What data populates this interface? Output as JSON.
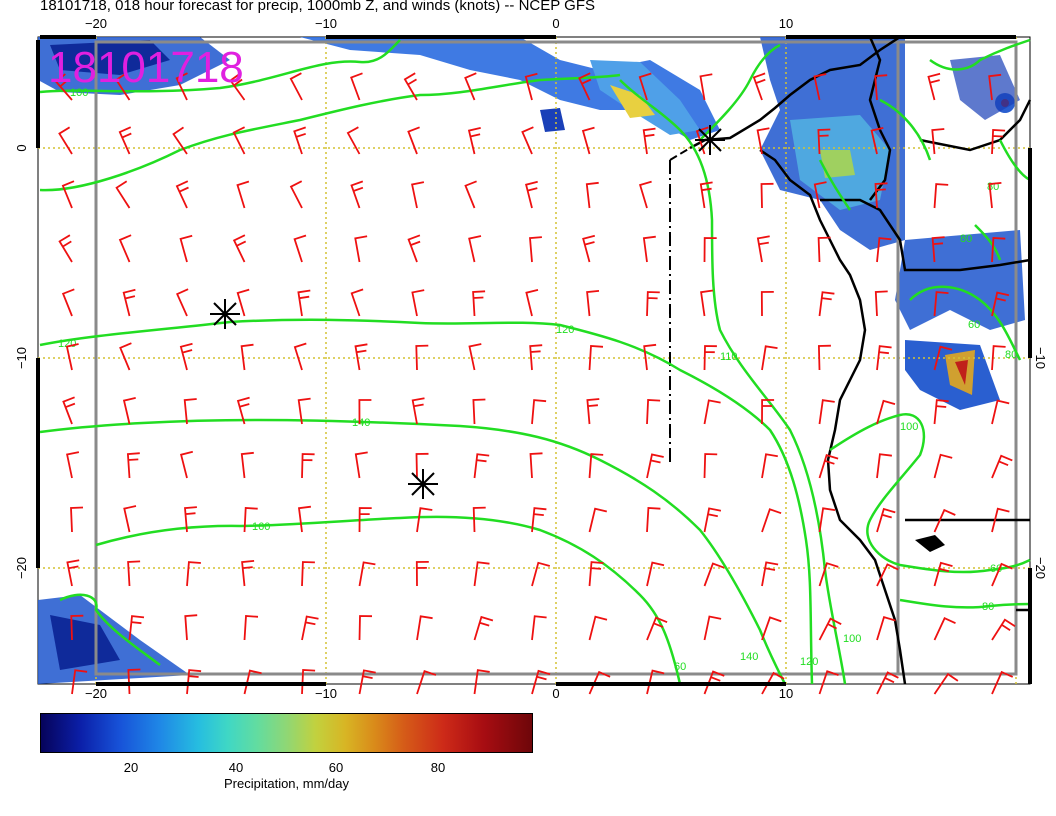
{
  "title": "18101718, 018 hour forecast for precip, 1000mb Z, and winds (knots) -- NCEP GFS",
  "stamp": "18101718",
  "map": {
    "lon_ticks": [
      "−20",
      "−10",
      "0",
      "10"
    ],
    "lat_ticks": [
      "0",
      "−10",
      "−20"
    ],
    "contour_labels": [
      "100",
      "120",
      "140",
      "160",
      "120",
      "110",
      "80",
      "60",
      "80",
      "100",
      "140",
      "120",
      "100",
      "60",
      "80",
      "60",
      "80"
    ]
  },
  "colorbar": {
    "ticks": [
      "20",
      "40",
      "60",
      "80"
    ],
    "label": "Precipitation, mm/day"
  },
  "colors": {
    "stamp": "#e020e0",
    "contour": "#22dd22",
    "wind_barb": "#ee1111",
    "gridline": "#d4c232",
    "coast": "#000000"
  }
}
